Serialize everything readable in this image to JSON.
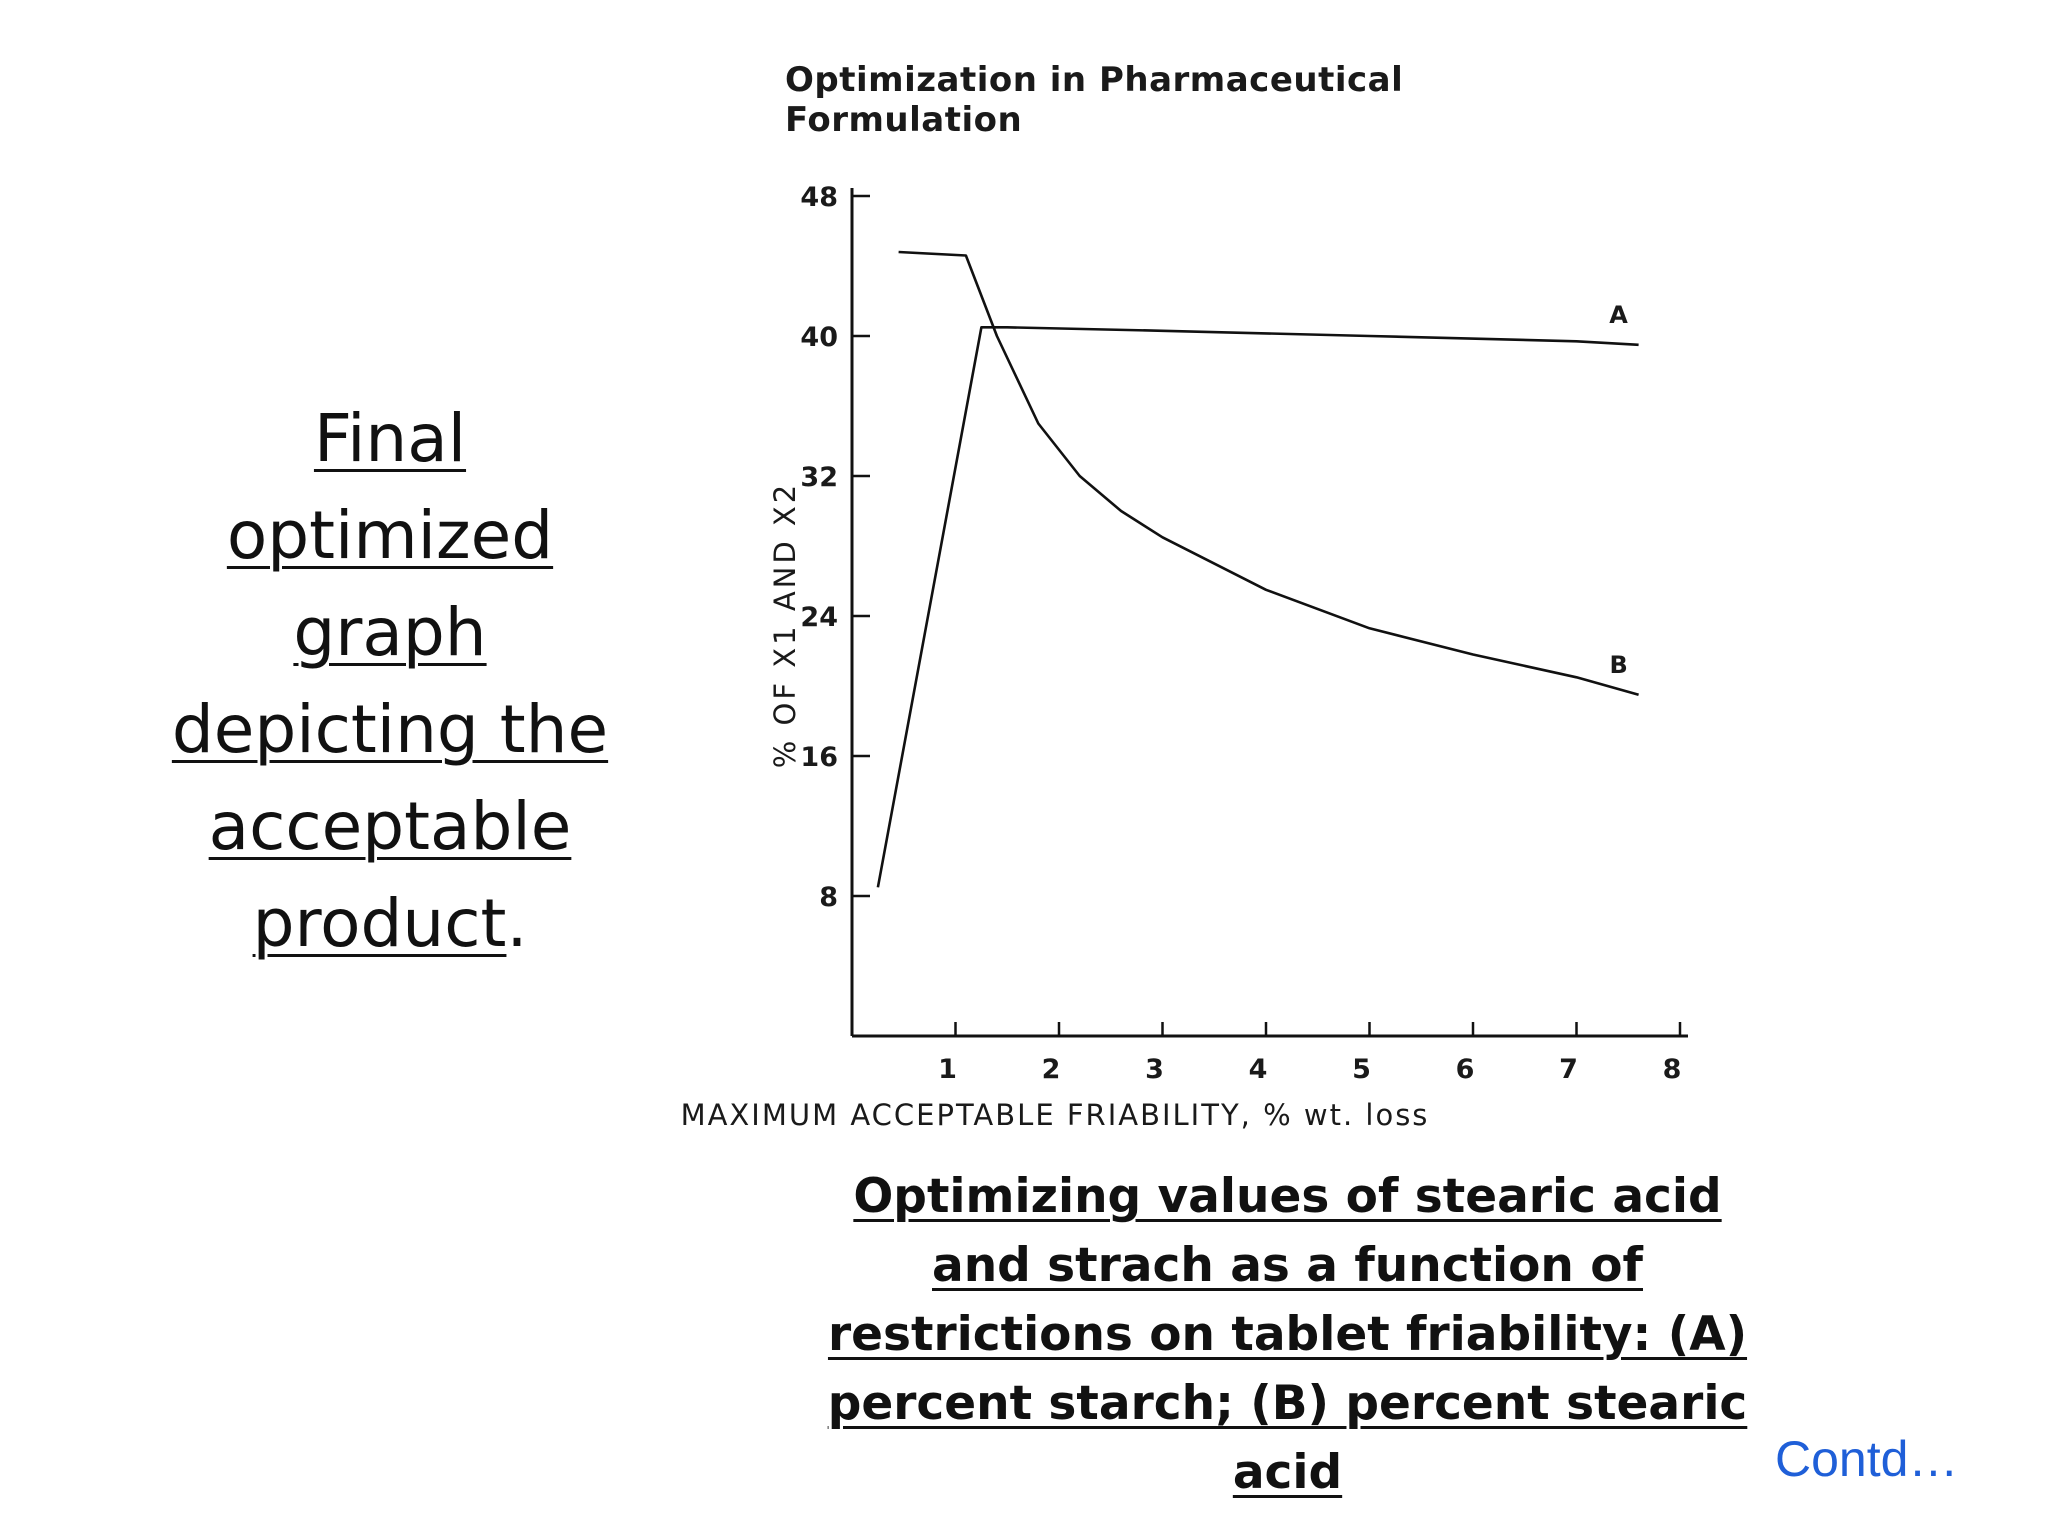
{
  "slide": {
    "heading_lines": [
      "Final",
      "optimized",
      "graph",
      "depicting the",
      "acceptable",
      "product"
    ],
    "heading_end": ".",
    "caption": "Optimizing values of stearic acid and strach as a function of restrictions on tablet friability: (A) percent starch; (B) percent stearic acid",
    "contd": "Contd…"
  },
  "chart_data": {
    "type": "line",
    "title": "Optimization in Pharmaceutical Formulation",
    "xlabel": "MAXIMUM ACCEPTABLE FRIABILITY, % wt. loss",
    "ylabel": "% OF X1 AND X2",
    "xlim": [
      0,
      8
    ],
    "ylim": [
      0,
      48
    ],
    "x_ticks": [
      1,
      2,
      3,
      4,
      5,
      6,
      7,
      8
    ],
    "y_ticks": [
      8,
      16,
      24,
      32,
      40,
      48
    ],
    "grid": false,
    "series": [
      {
        "name": "A",
        "x": [
          0.25,
          1.25,
          1.5,
          3,
          5,
          7,
          7.6
        ],
        "y": [
          8.5,
          40.5,
          40.5,
          40.3,
          40,
          39.7,
          39.5
        ]
      },
      {
        "name": "B",
        "x": [
          0.45,
          1.1,
          1.4,
          1.8,
          2.2,
          2.6,
          3,
          4,
          5,
          6,
          7,
          7.6
        ],
        "y": [
          44.8,
          44.6,
          40,
          35,
          32,
          30,
          28.5,
          25.5,
          23.3,
          21.8,
          20.5,
          19.5
        ]
      }
    ]
  }
}
